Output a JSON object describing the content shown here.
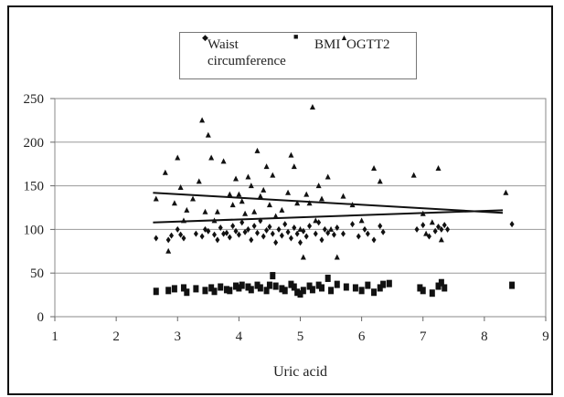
{
  "chart_data": {
    "type": "scatter",
    "title": "",
    "xlabel": "Uric acid",
    "ylabel": "",
    "xlim": [
      1,
      9
    ],
    "ylim": [
      0,
      250
    ],
    "xticks": [
      "1",
      "2",
      "3",
      "4",
      "5",
      "6",
      "7",
      "8",
      "9"
    ],
    "yticks": [
      "0",
      "50",
      "100",
      "150",
      "200",
      "250"
    ],
    "grid": "horizontal",
    "legend_position": "top",
    "series": [
      {
        "name": "Waist circumference",
        "marker": "diamond",
        "color": "#111111",
        "points": [
          [
            2.65,
            90
          ],
          [
            2.85,
            88
          ],
          [
            2.9,
            93
          ],
          [
            3.0,
            100
          ],
          [
            3.05,
            94
          ],
          [
            3.1,
            90
          ],
          [
            3.3,
            95
          ],
          [
            3.4,
            92
          ],
          [
            3.45,
            100
          ],
          [
            3.5,
            98
          ],
          [
            3.6,
            94
          ],
          [
            3.65,
            88
          ],
          [
            3.7,
            102
          ],
          [
            3.75,
            95
          ],
          [
            3.8,
            96
          ],
          [
            3.85,
            91
          ],
          [
            3.9,
            104
          ],
          [
            3.95,
            98
          ],
          [
            4.0,
            94
          ],
          [
            4.05,
            108
          ],
          [
            4.1,
            97
          ],
          [
            4.15,
            100
          ],
          [
            4.2,
            88
          ],
          [
            4.25,
            104
          ],
          [
            4.3,
            96
          ],
          [
            4.35,
            110
          ],
          [
            4.4,
            92
          ],
          [
            4.45,
            99
          ],
          [
            4.5,
            103
          ],
          [
            4.55,
            95
          ],
          [
            4.6,
            85
          ],
          [
            4.65,
            100
          ],
          [
            4.7,
            93
          ],
          [
            4.75,
            106
          ],
          [
            4.8,
            97
          ],
          [
            4.85,
            90
          ],
          [
            4.9,
            102
          ],
          [
            4.95,
            95
          ],
          [
            5.0,
            85
          ],
          [
            5.05,
            98
          ],
          [
            5.1,
            92
          ],
          [
            5.15,
            104
          ],
          [
            5.25,
            95
          ],
          [
            5.3,
            108
          ],
          [
            5.35,
            88
          ],
          [
            5.4,
            100
          ],
          [
            5.45,
            96
          ],
          [
            5.55,
            94
          ],
          [
            5.6,
            102
          ],
          [
            5.7,
            95
          ],
          [
            5.85,
            106
          ],
          [
            5.95,
            92
          ],
          [
            6.05,
            100
          ],
          [
            6.1,
            95
          ],
          [
            6.2,
            88
          ],
          [
            6.3,
            104
          ],
          [
            6.35,
            97
          ],
          [
            6.9,
            100
          ],
          [
            7.0,
            105
          ],
          [
            7.1,
            92
          ],
          [
            7.2,
            98
          ],
          [
            7.25,
            103
          ],
          [
            7.3,
            100
          ],
          [
            7.35,
            105
          ],
          [
            7.4,
            100
          ],
          [
            8.45,
            106
          ]
        ]
      },
      {
        "name": "BMI",
        "marker": "square",
        "color": "#111111",
        "points": [
          [
            2.65,
            29
          ],
          [
            2.85,
            30
          ],
          [
            2.95,
            32
          ],
          [
            3.1,
            33
          ],
          [
            3.15,
            28
          ],
          [
            3.3,
            32
          ],
          [
            3.45,
            30
          ],
          [
            3.55,
            33
          ],
          [
            3.6,
            29
          ],
          [
            3.7,
            34
          ],
          [
            3.8,
            31
          ],
          [
            3.85,
            30
          ],
          [
            3.95,
            35
          ],
          [
            4.0,
            33
          ],
          [
            4.05,
            36
          ],
          [
            4.15,
            34
          ],
          [
            4.2,
            31
          ],
          [
            4.3,
            36
          ],
          [
            4.35,
            33
          ],
          [
            4.45,
            30
          ],
          [
            4.5,
            36
          ],
          [
            4.55,
            47
          ],
          [
            4.6,
            35
          ],
          [
            4.7,
            32
          ],
          [
            4.75,
            30
          ],
          [
            4.85,
            37
          ],
          [
            4.9,
            34
          ],
          [
            4.95,
            28
          ],
          [
            5.0,
            26
          ],
          [
            5.05,
            30
          ],
          [
            5.15,
            35
          ],
          [
            5.2,
            31
          ],
          [
            5.3,
            36
          ],
          [
            5.35,
            33
          ],
          [
            5.45,
            44
          ],
          [
            5.5,
            30
          ],
          [
            5.6,
            37
          ],
          [
            5.75,
            34
          ],
          [
            5.9,
            33
          ],
          [
            6.0,
            30
          ],
          [
            6.1,
            36
          ],
          [
            6.2,
            28
          ],
          [
            6.3,
            33
          ],
          [
            6.35,
            37
          ],
          [
            6.45,
            38
          ],
          [
            6.95,
            33
          ],
          [
            7.0,
            30
          ],
          [
            7.15,
            27
          ],
          [
            7.25,
            35
          ],
          [
            7.3,
            39
          ],
          [
            7.35,
            33
          ],
          [
            8.45,
            36
          ]
        ]
      },
      {
        "name": "OGTT2",
        "marker": "triangle",
        "color": "#111111",
        "points": [
          [
            2.65,
            135
          ],
          [
            2.8,
            165
          ],
          [
            2.85,
            75
          ],
          [
            2.95,
            130
          ],
          [
            3.0,
            182
          ],
          [
            3.05,
            148
          ],
          [
            3.1,
            110
          ],
          [
            3.15,
            122
          ],
          [
            3.25,
            135
          ],
          [
            3.35,
            155
          ],
          [
            3.4,
            225
          ],
          [
            3.45,
            120
          ],
          [
            3.5,
            208
          ],
          [
            3.55,
            182
          ],
          [
            3.6,
            110
          ],
          [
            3.65,
            120
          ],
          [
            3.75,
            178
          ],
          [
            3.85,
            140
          ],
          [
            3.9,
            128
          ],
          [
            3.95,
            158
          ],
          [
            4.0,
            140
          ],
          [
            4.05,
            132
          ],
          [
            4.1,
            118
          ],
          [
            4.15,
            160
          ],
          [
            4.2,
            150
          ],
          [
            4.25,
            120
          ],
          [
            4.3,
            190
          ],
          [
            4.35,
            138
          ],
          [
            4.4,
            145
          ],
          [
            4.45,
            172
          ],
          [
            4.5,
            128
          ],
          [
            4.55,
            162
          ],
          [
            4.6,
            115
          ],
          [
            4.7,
            122
          ],
          [
            4.8,
            142
          ],
          [
            4.85,
            185
          ],
          [
            4.9,
            172
          ],
          [
            4.95,
            130
          ],
          [
            5.0,
            100
          ],
          [
            5.05,
            68
          ],
          [
            5.1,
            140
          ],
          [
            5.15,
            130
          ],
          [
            5.2,
            240
          ],
          [
            5.25,
            110
          ],
          [
            5.3,
            150
          ],
          [
            5.35,
            135
          ],
          [
            5.45,
            160
          ],
          [
            5.5,
            100
          ],
          [
            5.6,
            68
          ],
          [
            5.7,
            138
          ],
          [
            5.85,
            128
          ],
          [
            6.0,
            110
          ],
          [
            6.2,
            170
          ],
          [
            6.3,
            155
          ],
          [
            6.85,
            162
          ],
          [
            7.0,
            118
          ],
          [
            7.05,
            95
          ],
          [
            7.15,
            108
          ],
          [
            7.25,
            170
          ],
          [
            7.3,
            88
          ],
          [
            8.35,
            142
          ]
        ]
      }
    ],
    "trendlines": [
      {
        "from": [
          2.6,
          142
        ],
        "to": [
          8.3,
          119
        ]
      },
      {
        "from": [
          2.6,
          108
        ],
        "to": [
          8.3,
          122
        ]
      }
    ],
    "legend": [
      {
        "name_line1": "Waist",
        "name_line2": "circumference",
        "marker": "diamond"
      },
      {
        "name_line1": "BMI",
        "name_line2": "",
        "marker": "square"
      },
      {
        "name_line1": "OGTT2",
        "name_line2": "",
        "marker": "triangle"
      }
    ]
  }
}
